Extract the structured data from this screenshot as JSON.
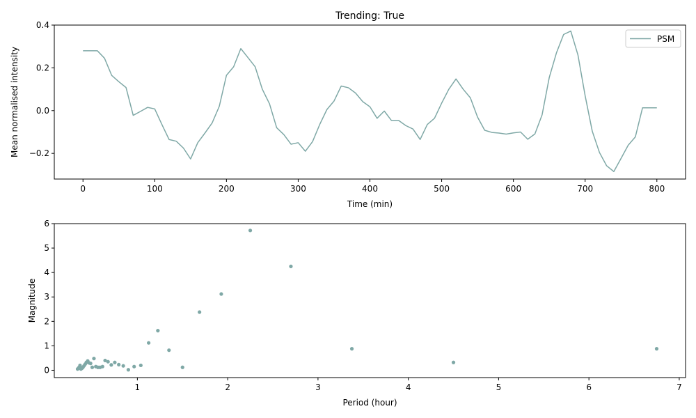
{
  "chart_data": [
    {
      "type": "line",
      "title": "Trending: True",
      "xlabel": "Time (min)",
      "ylabel": "Mean normalised intensity",
      "xlim": [
        -40,
        840
      ],
      "ylim": [
        -0.32,
        0.4
      ],
      "xticks": [
        0,
        100,
        200,
        300,
        400,
        500,
        600,
        700,
        800
      ],
      "yticks": [
        -0.2,
        0.0,
        0.2,
        0.4
      ],
      "ytick_labels": [
        "−0.2",
        "0.0",
        "0.2",
        "0.4"
      ],
      "grid": false,
      "legend": "upper right",
      "color": "#7fa8a6",
      "series": [
        {
          "name": "PSM",
          "x": [
            0,
            10,
            20,
            30,
            40,
            50,
            60,
            70,
            80,
            90,
            100,
            110,
            120,
            130,
            140,
            150,
            160,
            170,
            180,
            190,
            200,
            210,
            220,
            230,
            240,
            250,
            260,
            270,
            280,
            290,
            300,
            310,
            320,
            330,
            340,
            350,
            360,
            370,
            380,
            390,
            400,
            410,
            420,
            430,
            440,
            450,
            460,
            470,
            480,
            490,
            500,
            510,
            520,
            530,
            540,
            550,
            560,
            570,
            580,
            590,
            600,
            610,
            620,
            630,
            640,
            650,
            660,
            670,
            680,
            690,
            700,
            710,
            720,
            730,
            740,
            750,
            760,
            770,
            780,
            790,
            800
          ],
          "y": [
            0.28,
            0.28,
            0.28,
            0.245,
            0.165,
            0.135,
            0.108,
            -0.022,
            -0.004,
            0.015,
            0.008,
            -0.065,
            -0.135,
            -0.143,
            -0.175,
            -0.226,
            -0.15,
            -0.105,
            -0.058,
            0.02,
            0.165,
            0.205,
            0.29,
            0.248,
            0.205,
            0.1,
            0.032,
            -0.08,
            -0.112,
            -0.157,
            -0.15,
            -0.19,
            -0.145,
            -0.065,
            0.005,
            0.045,
            0.115,
            0.107,
            0.082,
            0.042,
            0.018,
            -0.036,
            -0.002,
            -0.046,
            -0.046,
            -0.07,
            -0.086,
            -0.135,
            -0.065,
            -0.036,
            0.035,
            0.1,
            0.148,
            0.1,
            0.06,
            -0.03,
            -0.092,
            -0.102,
            -0.105,
            -0.11,
            -0.104,
            -0.1,
            -0.134,
            -0.109,
            -0.02,
            0.155,
            0.27,
            0.356,
            0.372,
            0.26,
            0.07,
            -0.097,
            -0.196,
            -0.258,
            -0.285,
            -0.224,
            -0.162,
            -0.123,
            0.013,
            0.013,
            0.013
          ]
        }
      ]
    },
    {
      "type": "scatter",
      "title": "",
      "xlabel": "Period (hour)",
      "ylabel": "Magnitude",
      "xlim": [
        0.08,
        7.07
      ],
      "ylim": [
        -0.3,
        6.0
      ],
      "xticks": [
        1,
        2,
        3,
        4,
        5,
        6,
        7
      ],
      "yticks": [
        0,
        1,
        2,
        3,
        4,
        5,
        6
      ],
      "grid": false,
      "color": "#7fa8a6",
      "series": [
        {
          "x": [
            6.75,
            4.5,
            3.375,
            2.7,
            2.25,
            1.929,
            1.688,
            1.5,
            1.35,
            1.227,
            1.125,
            1.038,
            0.964,
            0.9,
            0.844,
            0.794,
            0.75,
            0.711,
            0.675,
            0.643,
            0.614,
            0.587,
            0.563,
            0.54,
            0.519,
            0.5,
            0.482,
            0.466,
            0.45,
            0.435,
            0.422,
            0.409,
            0.397,
            0.386,
            0.375,
            0.365,
            0.355,
            0.346,
            0.338
          ],
          "y": [
            0.88,
            0.32,
            0.88,
            4.25,
            5.72,
            3.12,
            2.38,
            0.12,
            0.82,
            1.62,
            1.12,
            0.2,
            0.15,
            0.02,
            0.18,
            0.23,
            0.32,
            0.22,
            0.35,
            0.4,
            0.15,
            0.12,
            0.12,
            0.15,
            0.48,
            0.12,
            0.28,
            0.3,
            0.38,
            0.32,
            0.25,
            0.18,
            0.12,
            0.08,
            0.05,
            0.2,
            0.12,
            0.08,
            0.05
          ]
        }
      ]
    }
  ]
}
